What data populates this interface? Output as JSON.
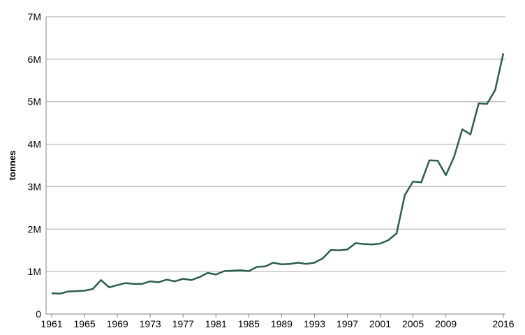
{
  "chart_data": {
    "type": "line",
    "title": "",
    "xlabel": "",
    "ylabel": "tonnes",
    "xlim": [
      1961,
      2016
    ],
    "ylim": [
      0,
      7000000
    ],
    "grid": "horizontal",
    "legend": "none",
    "line_color": "#2a6048",
    "grid_color": "#a6a6a6",
    "x_ticks": [
      1961,
      1965,
      1969,
      1973,
      1977,
      1981,
      1985,
      1989,
      1993,
      1997,
      2001,
      2005,
      2009,
      2016
    ],
    "y_ticks": [
      {
        "value": 0,
        "label": "0"
      },
      {
        "value": 1000000,
        "label": "1M"
      },
      {
        "value": 2000000,
        "label": "2M"
      },
      {
        "value": 3000000,
        "label": "3M"
      },
      {
        "value": 4000000,
        "label": "4M"
      },
      {
        "value": 5000000,
        "label": "5M"
      },
      {
        "value": 6000000,
        "label": "6M"
      },
      {
        "value": 7000000,
        "label": "7M"
      }
    ],
    "series": [
      {
        "x": [
          1961,
          1962,
          1963,
          1964,
          1965,
          1966,
          1967,
          1968,
          1969,
          1970,
          1971,
          1972,
          1973,
          1974,
          1975,
          1976,
          1977,
          1978,
          1979,
          1980,
          1981,
          1982,
          1983,
          1984,
          1985,
          1986,
          1987,
          1988,
          1989,
          1990,
          1991,
          1992,
          1993,
          1994,
          1995,
          1996,
          1997,
          1998,
          1999,
          2000,
          2001,
          2002,
          2003,
          2004,
          2005,
          2006,
          2007,
          2008,
          2009,
          2010,
          2011,
          2012,
          2013,
          2014,
          2015,
          2016
        ],
        "values": [
          490000,
          480000,
          530000,
          540000,
          550000,
          590000,
          800000,
          630000,
          680000,
          730000,
          710000,
          710000,
          770000,
          750000,
          810000,
          770000,
          830000,
          800000,
          870000,
          970000,
          930000,
          1010000,
          1020000,
          1030000,
          1010000,
          1110000,
          1120000,
          1210000,
          1170000,
          1180000,
          1210000,
          1180000,
          1210000,
          1310000,
          1510000,
          1500000,
          1520000,
          1670000,
          1650000,
          1640000,
          1660000,
          1740000,
          1900000,
          2800000,
          3120000,
          3100000,
          3620000,
          3610000,
          3270000,
          3700000,
          4350000,
          4230000,
          4960000,
          4950000,
          5270000,
          6140000
        ]
      }
    ]
  }
}
